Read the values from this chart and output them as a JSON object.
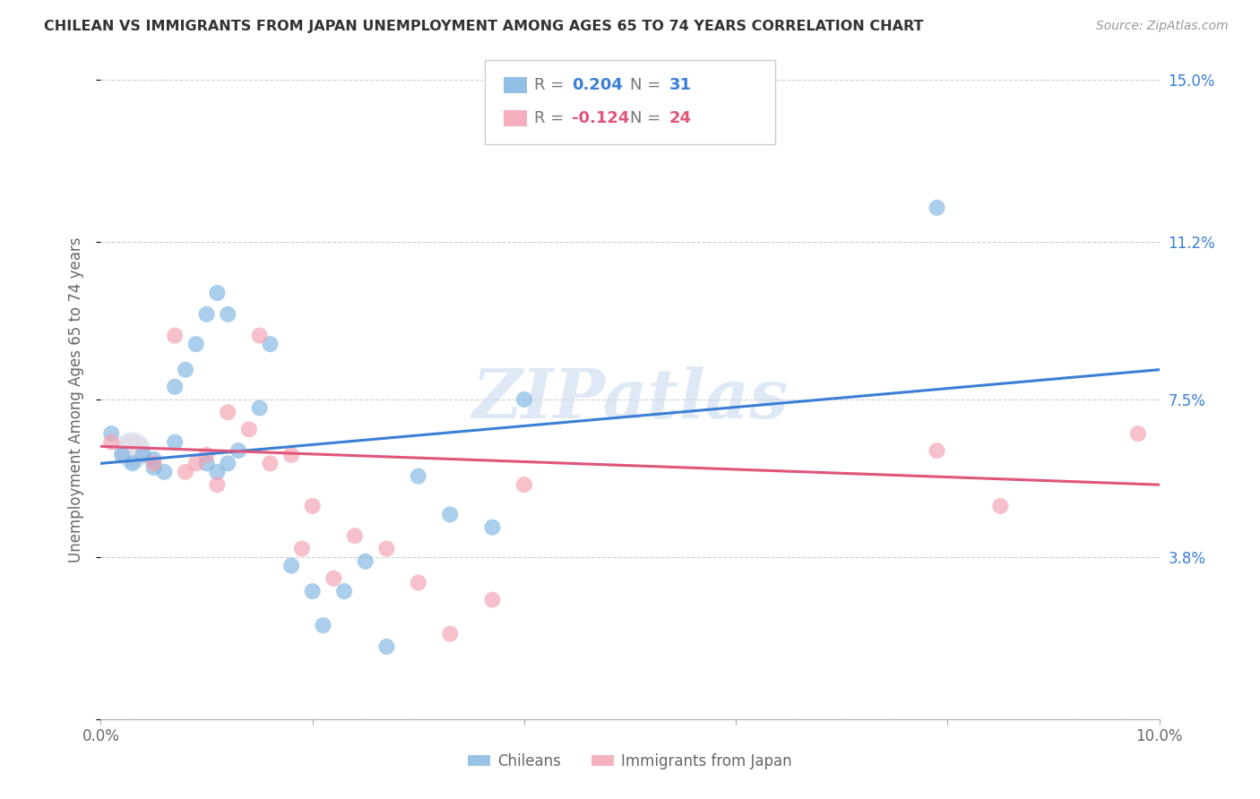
{
  "title": "CHILEAN VS IMMIGRANTS FROM JAPAN UNEMPLOYMENT AMONG AGES 65 TO 74 YEARS CORRELATION CHART",
  "source": "Source: ZipAtlas.com",
  "ylabel": "Unemployment Among Ages 65 to 74 years",
  "xlim": [
    0.0,
    0.1
  ],
  "ylim": [
    0.0,
    0.15
  ],
  "yticks": [
    0.0,
    0.038,
    0.075,
    0.112,
    0.15
  ],
  "ytick_labels": [
    "",
    "3.8%",
    "7.5%",
    "11.2%",
    "15.0%"
  ],
  "xticks": [
    0.0,
    0.02,
    0.04,
    0.06,
    0.08,
    0.1
  ],
  "xtick_labels": [
    "0.0%",
    "",
    "",
    "",
    "",
    "10.0%"
  ],
  "grid_color": "#d0d0d0",
  "background_color": "#ffffff",
  "watermark": "ZIPatlas",
  "chilean_color": "#7eb4e2",
  "japan_color": "#f4a0b0",
  "chilean_line_color": "#3a7fd5",
  "japan_line_color": "#e05578",
  "chilean_label": "Chileans",
  "japan_label": "Immigrants from Japan",
  "chilean_x": [
    0.001,
    0.002,
    0.003,
    0.004,
    0.005,
    0.005,
    0.006,
    0.007,
    0.007,
    0.008,
    0.009,
    0.01,
    0.01,
    0.011,
    0.011,
    0.012,
    0.012,
    0.013,
    0.015,
    0.016,
    0.018,
    0.02,
    0.021,
    0.023,
    0.025,
    0.027,
    0.03,
    0.033,
    0.037,
    0.04,
    0.079
  ],
  "chilean_y": [
    0.067,
    0.062,
    0.06,
    0.062,
    0.059,
    0.061,
    0.058,
    0.065,
    0.078,
    0.082,
    0.088,
    0.095,
    0.06,
    0.058,
    0.1,
    0.06,
    0.095,
    0.063,
    0.073,
    0.088,
    0.036,
    0.03,
    0.022,
    0.03,
    0.037,
    0.017,
    0.057,
    0.048,
    0.045,
    0.075,
    0.12
  ],
  "japan_x": [
    0.001,
    0.005,
    0.007,
    0.008,
    0.009,
    0.01,
    0.011,
    0.012,
    0.014,
    0.015,
    0.016,
    0.018,
    0.019,
    0.02,
    0.022,
    0.024,
    0.027,
    0.03,
    0.033,
    0.037,
    0.04,
    0.079,
    0.085,
    0.098
  ],
  "japan_y": [
    0.065,
    0.06,
    0.09,
    0.058,
    0.06,
    0.062,
    0.055,
    0.072,
    0.068,
    0.09,
    0.06,
    0.062,
    0.04,
    0.05,
    0.033,
    0.043,
    0.04,
    0.032,
    0.02,
    0.028,
    0.055,
    0.063,
    0.05,
    0.067
  ],
  "line_blue_x0": 0.0,
  "line_blue_y0": 0.06,
  "line_blue_x1": 0.1,
  "line_blue_y1": 0.082,
  "line_pink_x0": 0.0,
  "line_pink_y0": 0.064,
  "line_pink_x1": 0.1,
  "line_pink_y1": 0.055,
  "legend_R1_val": "0.204",
  "legend_N1_val": "31",
  "legend_R2_val": "-0.124",
  "legend_N2_val": "24",
  "accent_color": "#3a7fd5",
  "accent_color2": "#e05578",
  "label_color": "#666666",
  "tick_color": "#3a7fd5"
}
